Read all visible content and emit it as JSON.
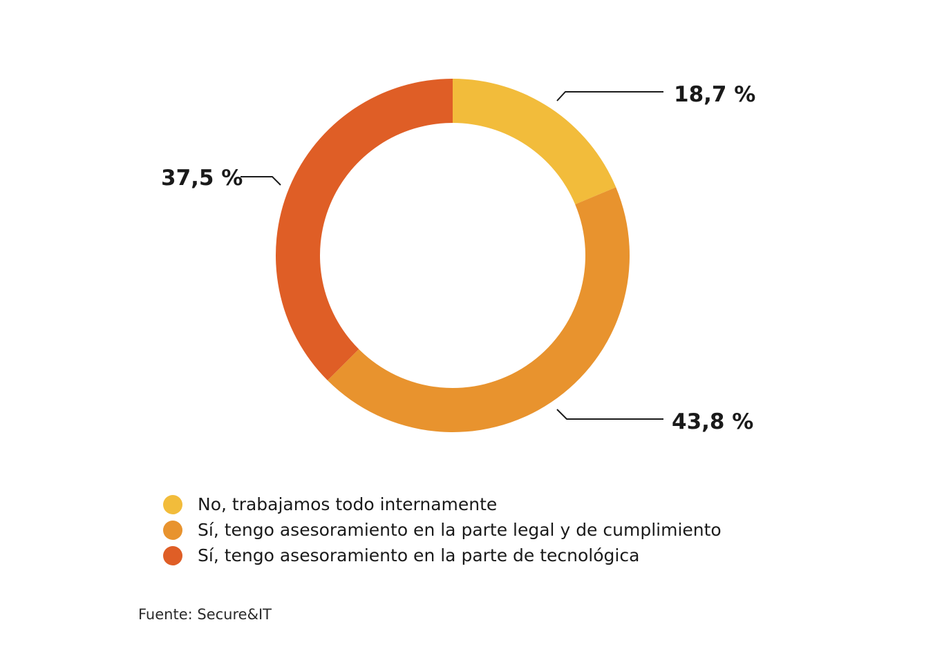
{
  "chart_data": {
    "type": "pie",
    "variant": "donut",
    "title": "",
    "categories": [
      "No, trabajamos todo internamente",
      "Sí, tengo asesoramiento en la parte legal y de cumplimiento",
      "Sí, tengo asesoramiento en la parte de tecnológica"
    ],
    "values": [
      18.7,
      43.8,
      37.5
    ],
    "value_labels": [
      "18,7 %",
      "43,8 %",
      "37,5 %"
    ],
    "colors": [
      "#f2bc3b",
      "#e8932e",
      "#df5e26"
    ],
    "legend_position": "bottom-left"
  },
  "source": "Fuente: Secure&IT"
}
